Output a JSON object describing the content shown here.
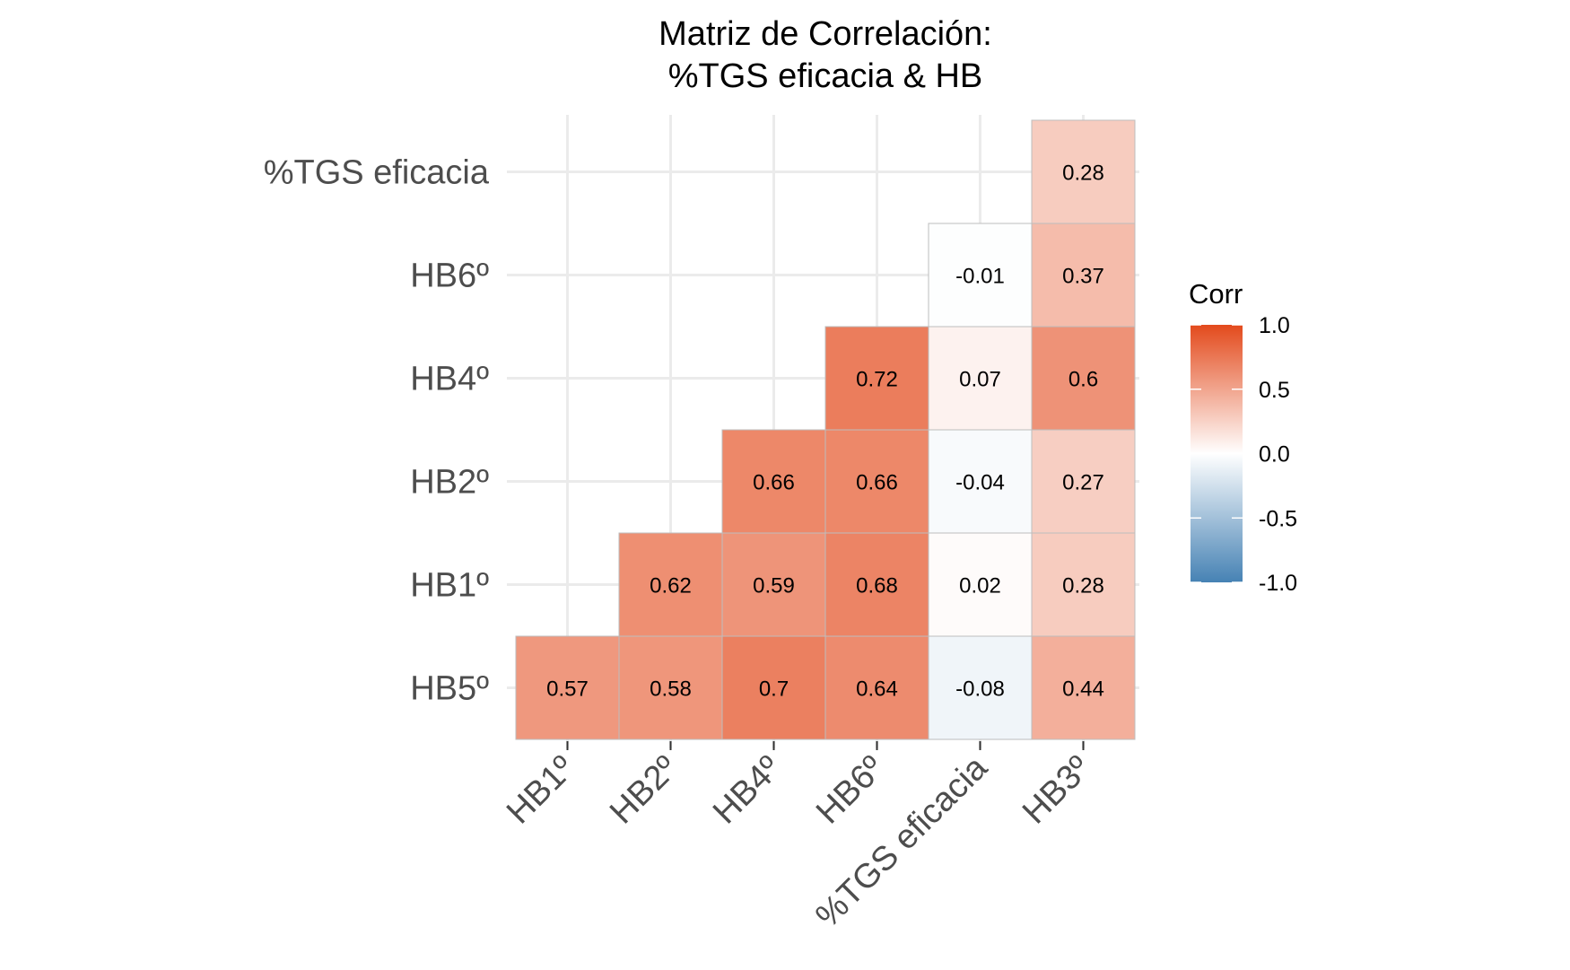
{
  "chart_data": {
    "type": "heatmap",
    "title_lines": [
      "Matriz de Correlación:",
      "%TGS eficacia & HB"
    ],
    "x_categories": [
      "HB1º",
      "HB2º",
      "HB4º",
      "HB6º",
      "%TGS eficacia",
      "HB3º"
    ],
    "y_categories": [
      "HB5º",
      "HB1º",
      "HB2º",
      "HB4º",
      "HB6º",
      "%TGS eficacia"
    ],
    "cells": [
      {
        "x": "HB1º",
        "y": "HB5º",
        "value": 0.57,
        "label": "0.57"
      },
      {
        "x": "HB2º",
        "y": "HB5º",
        "value": 0.58,
        "label": "0.58"
      },
      {
        "x": "HB4º",
        "y": "HB5º",
        "value": 0.7,
        "label": "0.7"
      },
      {
        "x": "HB6º",
        "y": "HB5º",
        "value": 0.64,
        "label": "0.64"
      },
      {
        "x": "%TGS eficacia",
        "y": "HB5º",
        "value": -0.08,
        "label": "-0.08"
      },
      {
        "x": "HB3º",
        "y": "HB5º",
        "value": 0.44,
        "label": "0.44"
      },
      {
        "x": "HB2º",
        "y": "HB1º",
        "value": 0.62,
        "label": "0.62"
      },
      {
        "x": "HB4º",
        "y": "HB1º",
        "value": 0.59,
        "label": "0.59"
      },
      {
        "x": "HB6º",
        "y": "HB1º",
        "value": 0.68,
        "label": "0.68"
      },
      {
        "x": "%TGS eficacia",
        "y": "HB1º",
        "value": 0.02,
        "label": "0.02"
      },
      {
        "x": "HB3º",
        "y": "HB1º",
        "value": 0.28,
        "label": "0.28"
      },
      {
        "x": "HB4º",
        "y": "HB2º",
        "value": 0.66,
        "label": "0.66"
      },
      {
        "x": "HB6º",
        "y": "HB2º",
        "value": 0.66,
        "label": "0.66"
      },
      {
        "x": "%TGS eficacia",
        "y": "HB2º",
        "value": -0.04,
        "label": "-0.04"
      },
      {
        "x": "HB3º",
        "y": "HB2º",
        "value": 0.27,
        "label": "0.27"
      },
      {
        "x": "HB6º",
        "y": "HB4º",
        "value": 0.72,
        "label": "0.72"
      },
      {
        "x": "%TGS eficacia",
        "y": "HB4º",
        "value": 0.07,
        "label": "0.07"
      },
      {
        "x": "HB3º",
        "y": "HB4º",
        "value": 0.6,
        "label": "0.6"
      },
      {
        "x": "%TGS eficacia",
        "y": "HB6º",
        "value": -0.01,
        "label": "-0.01"
      },
      {
        "x": "HB3º",
        "y": "HB6º",
        "value": 0.37,
        "label": "0.37"
      },
      {
        "x": "HB3º",
        "y": "%TGS eficacia",
        "value": 0.28,
        "label": "0.28"
      }
    ],
    "legend": {
      "title": "Corr",
      "ticks": [
        {
          "value": 1.0,
          "label": "1.0"
        },
        {
          "value": 0.5,
          "label": "0.5"
        },
        {
          "value": 0.0,
          "label": "0.0"
        },
        {
          "value": -0.5,
          "label": "-0.5"
        },
        {
          "value": -1.0,
          "label": "-1.0"
        }
      ],
      "range": [
        -1,
        1
      ],
      "placement": "right"
    },
    "colors": {
      "low": "#4682B4",
      "mid": "#FFFFFF",
      "high": "#E34A1C",
      "grid": "#EBEBEB",
      "tile_border": "#BDBDBD"
    },
    "grid": true
  }
}
